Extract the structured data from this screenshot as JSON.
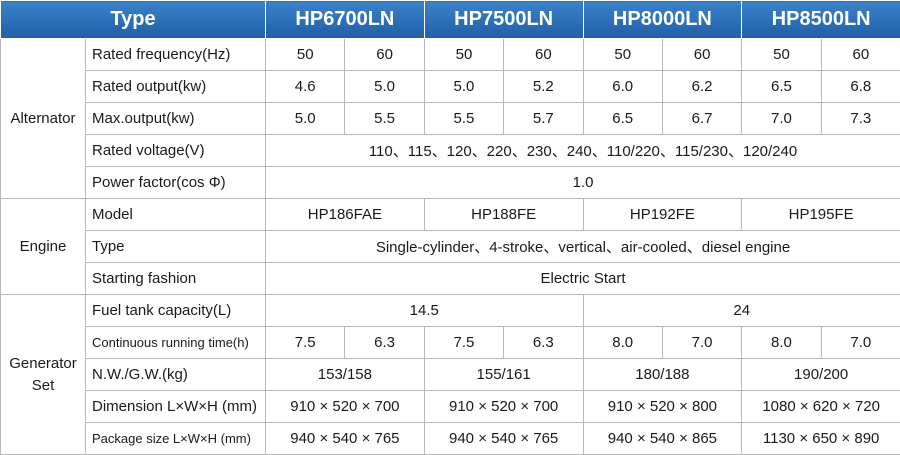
{
  "table": {
    "header": [
      "Type",
      "HP6700LN",
      "HP7500LN",
      "HP8000LN",
      "HP8500LN"
    ],
    "groups": [
      {
        "name": "Alternator",
        "rows": [
          {
            "label": "Rated frequency(Hz)",
            "cells": [
              "50",
              "60",
              "50",
              "60",
              "50",
              "60",
              "50",
              "60"
            ]
          },
          {
            "label": "Rated output(kw)",
            "cells": [
              "4.6",
              "5.0",
              "5.0",
              "5.2",
              "6.0",
              "6.2",
              "6.5",
              "6.8"
            ]
          },
          {
            "label": "Max.output(kw)",
            "cells": [
              "5.0",
              "5.5",
              "5.5",
              "5.7",
              "6.5",
              "6.7",
              "7.0",
              "7.3"
            ]
          },
          {
            "label": "Rated voltage(V)",
            "cells": [
              "110、115、120、220、230、240、110/220、115/230、120/240"
            ]
          },
          {
            "label": "Power factor(cos Φ)",
            "cells": [
              "1.0"
            ]
          }
        ]
      },
      {
        "name": "Engine",
        "rows": [
          {
            "label": "Model",
            "cells": [
              "HP186FAE",
              "HP188FE",
              "HP192FE",
              "HP195FE"
            ]
          },
          {
            "label": "Type",
            "cells": [
              "Single-cylinder、4-stroke、vertical、air-cooled、diesel engine"
            ]
          },
          {
            "label": "Starting fashion",
            "cells": [
              "Electric Start"
            ]
          }
        ]
      },
      {
        "name": "Generator Set",
        "rows": [
          {
            "label": "Fuel tank capacity(L)",
            "cells": [
              "14.5",
              "24"
            ]
          },
          {
            "label": "Continuous running time(h)",
            "cells": [
              "7.5",
              "6.3",
              "7.5",
              "6.3",
              "8.0",
              "7.0",
              "8.0",
              "7.0"
            ]
          },
          {
            "label": "N.W./G.W.(kg)",
            "cells": [
              "153/158",
              "155/161",
              "180/188",
              "190/200"
            ]
          },
          {
            "label": "Dimension L×W×H (mm)",
            "cells": [
              "910 × 520 × 700",
              "910 × 520 × 700",
              "910 × 520 × 800",
              "1080 × 620 × 720"
            ]
          },
          {
            "label": "Package size L×W×H (mm)",
            "cells": [
              "940 × 540 × 765",
              "940 × 540 × 765",
              "940 × 540 × 865",
              "1130 × 650 × 890"
            ]
          }
        ]
      }
    ]
  }
}
